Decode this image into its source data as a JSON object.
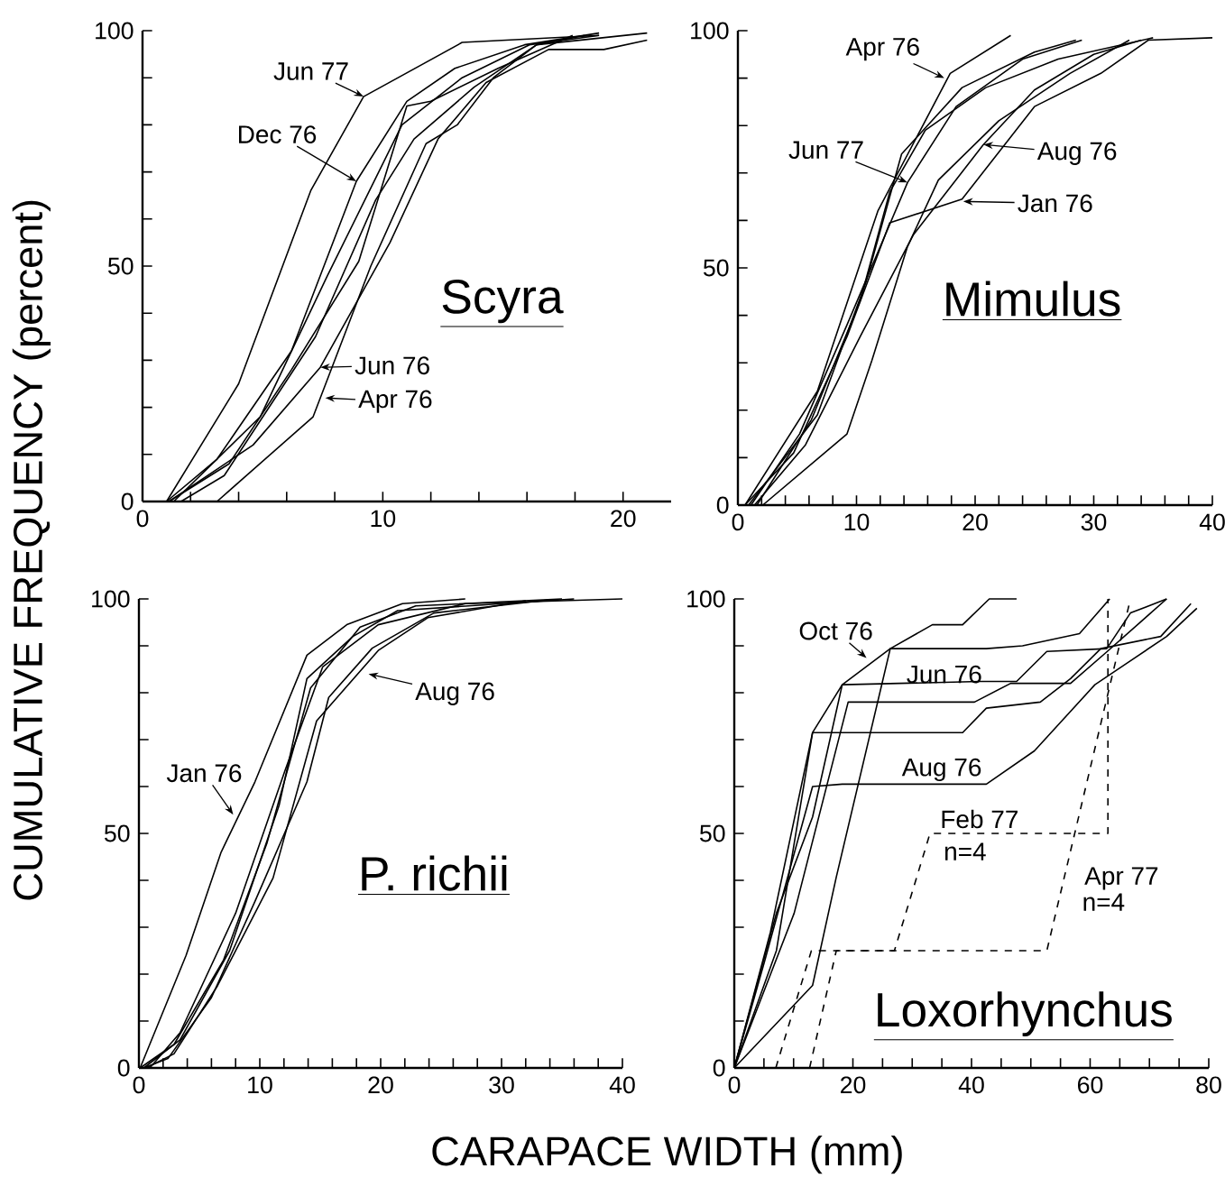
{
  "chart_data": [
    {
      "type": "line",
      "title": "Scyra",
      "ylabel": "CUMULATIVE FREQUENCY (percent)",
      "xlim": [
        0,
        22
      ],
      "ylim": [
        0,
        100
      ],
      "xticks": [
        0,
        {
          "value": 2,
          "label": null
        },
        {
          "value": 4,
          "label": null
        },
        {
          "value": 6,
          "label": null
        },
        {
          "value": 8,
          "label": null
        },
        10,
        {
          "value": 12,
          "label": null
        },
        {
          "value": 14,
          "label": null
        },
        {
          "value": 16,
          "label": null
        },
        {
          "value": 18,
          "label": null
        },
        20
      ],
      "yticks": [
        0,
        {
          "value": 10,
          "label": null
        },
        {
          "value": 20,
          "label": null
        },
        {
          "value": 30,
          "label": null
        },
        {
          "value": 40,
          "label": null
        },
        50,
        {
          "value": 60,
          "label": null
        },
        {
          "value": 70,
          "label": null
        },
        {
          "value": 80,
          "label": null
        },
        {
          "value": 90,
          "label": null
        },
        100
      ],
      "series": [
        {
          "color": "#000000",
          "x": [
            1,
            4,
            7,
            9.2,
            13.3,
            19
          ],
          "values": [
            0,
            25,
            66,
            86,
            97.5,
            99
          ]
        },
        {
          "color": "#000000",
          "x": [
            1,
            3.1,
            6.2,
            8.9,
            11,
            13,
            15.9,
            19
          ],
          "values": [
            0,
            9,
            32,
            68,
            85,
            92,
            97,
            99.5
          ]
        },
        {
          "color": "#000000",
          "x": [
            3.1,
            7.1,
            9.5,
            11.8,
            13.1,
            14.6,
            16.4,
            21
          ],
          "values": [
            0,
            18,
            50,
            76,
            80,
            90,
            97,
            99.5
          ]
        },
        {
          "color": "#000000",
          "x": [
            1.1,
            4.6,
            7.4,
            10.3,
            12.3,
            14.3,
            16.9,
            19.2,
            21
          ],
          "values": [
            0,
            12,
            28.5,
            55,
            77,
            89,
            96,
            96,
            98
          ]
        },
        {
          "color": "#000000",
          "x": [
            1.3,
            4.9,
            7.7,
            10.8,
            13.3,
            16.1,
            19
          ],
          "values": [
            0,
            18,
            48,
            80,
            90,
            97,
            99
          ]
        },
        {
          "color": "#000000",
          "x": [
            1.1,
            3.6,
            6.2,
            9,
            11,
            12,
            14.8,
            17.9
          ],
          "values": [
            0,
            8,
            28,
            51,
            84,
            85,
            92,
            99
          ]
        },
        {
          "color": "#000000",
          "x": [
            1.6,
            3.4,
            5.2,
            7.2,
            9.7,
            11.3,
            13.8,
            16.4,
            18.4
          ],
          "values": [
            0,
            5.5,
            19.5,
            35,
            64,
            77,
            88,
            97,
            99
          ]
        }
      ],
      "annotations": [
        {
          "text": "Jun 77",
          "x": 9.2,
          "y": 86
        },
        {
          "text": "Dec 76",
          "x": 8.9,
          "y": 68
        },
        {
          "text": "Jun 76",
          "x": 7.4,
          "y": 28.5
        },
        {
          "text": "Apr 76",
          "x": 7.6,
          "y": 22
        }
      ]
    },
    {
      "type": "line",
      "title": "Mimulus",
      "xlim": [
        0,
        40
      ],
      "ylim": [
        0,
        100
      ],
      "xticks": [
        0,
        {
          "value": 2,
          "label": null
        },
        {
          "value": 4,
          "label": null
        },
        {
          "value": 6,
          "label": null
        },
        {
          "value": 8,
          "label": null
        },
        10,
        {
          "value": 12,
          "label": null
        },
        {
          "value": 14,
          "label": null
        },
        {
          "value": 16,
          "label": null
        },
        {
          "value": 18,
          "label": null
        },
        20,
        {
          "value": 22,
          "label": null
        },
        {
          "value": 24,
          "label": null
        },
        {
          "value": 26,
          "label": null
        },
        {
          "value": 28,
          "label": null
        },
        30,
        {
          "value": 32,
          "label": null
        },
        {
          "value": 34,
          "label": null
        },
        {
          "value": 36,
          "label": null
        },
        {
          "value": 38,
          "label": null
        },
        40
      ],
      "yticks": [
        0,
        {
          "value": 10,
          "label": null
        },
        {
          "value": 20,
          "label": null
        },
        {
          "value": 30,
          "label": null
        },
        {
          "value": 40,
          "label": null
        },
        50,
        {
          "value": 60,
          "label": null
        },
        {
          "value": 70,
          "label": null
        },
        {
          "value": 80,
          "label": null
        },
        {
          "value": 90,
          "label": null
        },
        100
      ],
      "series": [
        {
          "color": "#000000",
          "x": [
            0.6,
            6.7,
            11.8,
            17.9,
            23
          ],
          "values": [
            0,
            24,
            62,
            91,
            99
          ]
        },
        {
          "color": "#000000",
          "x": [
            1.1,
            5.2,
            9.2,
            14.3,
            18.4,
            24,
            29
          ],
          "values": [
            0,
            15,
            38,
            68,
            84,
            94,
            98
          ]
        },
        {
          "color": "#000000",
          "x": [
            1.4,
            5.7,
            10.3,
            14.8,
            20.7,
            25,
            30,
            34
          ],
          "values": [
            0,
            12.7,
            35.5,
            57,
            76,
            87.5,
            95,
            98
          ]
        },
        {
          "color": "#000000",
          "x": [
            0.6,
            4.7,
            9.2,
            12.8,
            18.9,
            25,
            30.6,
            34.6,
            40
          ],
          "values": [
            0,
            11,
            35.5,
            59.5,
            64.5,
            84,
            91,
            98,
            98.5
          ]
        },
        {
          "color": "#000000",
          "x": [
            2.1,
            9.2,
            11.3,
            14.3,
            16.9,
            22,
            28,
            33
          ],
          "values": [
            0,
            15,
            30.5,
            54.5,
            68.5,
            81,
            91,
            98
          ]
        },
        {
          "color": "#000000",
          "x": [
            0.9,
            6.7,
            10.8,
            13.8,
            18.9,
            25,
            28.5
          ],
          "values": [
            0,
            19,
            47,
            74,
            88,
            95.5,
            98
          ]
        },
        {
          "color": "#000000",
          "x": [
            1.6,
            6.2,
            10.3,
            12.8,
            15.8,
            20.9,
            27,
            35
          ],
          "values": [
            0,
            18,
            43,
            66,
            79,
            88,
            94,
            98.5
          ]
        }
      ],
      "annotations": [
        {
          "text": "Apr 76",
          "x": 17.4,
          "y": 90
        },
        {
          "text": "Jun 77",
          "x": 14.3,
          "y": 68
        },
        {
          "text": "Aug 76",
          "x": 20.7,
          "y": 76
        },
        {
          "text": "Jan 76",
          "x": 19,
          "y": 64
        }
      ]
    },
    {
      "type": "line",
      "title": "P. richii",
      "xlabel": "CARAPACE WIDTH (mm)",
      "xlim": [
        0,
        40
      ],
      "ylim": [
        0,
        100
      ],
      "xticks": [
        0,
        {
          "value": 2,
          "label": null
        },
        {
          "value": 4,
          "label": null
        },
        {
          "value": 6,
          "label": null
        },
        {
          "value": 8,
          "label": null
        },
        10,
        {
          "value": 12,
          "label": null
        },
        {
          "value": 14,
          "label": null
        },
        {
          "value": 16,
          "label": null
        },
        {
          "value": 18,
          "label": null
        },
        20,
        {
          "value": 22,
          "label": null
        },
        {
          "value": 24,
          "label": null
        },
        {
          "value": 26,
          "label": null
        },
        {
          "value": 28,
          "label": null
        },
        30,
        {
          "value": 32,
          "label": null
        },
        {
          "value": 34,
          "label": null
        },
        {
          "value": 36,
          "label": null
        },
        {
          "value": 38,
          "label": null
        },
        40
      ],
      "yticks": [
        0,
        {
          "value": 10,
          "label": null
        },
        {
          "value": 20,
          "label": null
        },
        {
          "value": 30,
          "label": null
        },
        {
          "value": 40,
          "label": null
        },
        50,
        {
          "value": 60,
          "label": null
        },
        {
          "value": 70,
          "label": null
        },
        {
          "value": 80,
          "label": null
        },
        {
          "value": 90,
          "label": null
        },
        100
      ],
      "series": [
        {
          "color": "#000000",
          "x": [
            0.1,
            3.9,
            6.8,
            9.6,
            13.9,
            17.2,
            21.8,
            27
          ],
          "values": [
            0,
            24,
            46,
            61,
            88,
            94.5,
            99,
            100
          ]
        },
        {
          "color": "#000000",
          "x": [
            0.6,
            2.9,
            6.5,
            11.1,
            14.7,
            19.8,
            23.9,
            32
          ],
          "values": [
            0,
            3,
            17.5,
            40.5,
            74,
            89,
            96,
            99.6
          ]
        },
        {
          "color": "#000000",
          "x": [
            0.4,
            2.4,
            6,
            9.6,
            13.9,
            15.7,
            19.3,
            24.4,
            34
          ],
          "values": [
            0,
            2,
            15,
            35.5,
            61,
            79,
            89.5,
            97,
            99.8
          ]
        },
        {
          "color": "#000000",
          "x": [
            0.4,
            3.4,
            7.5,
            11.6,
            13.9,
            17.7,
            21.4,
            36
          ],
          "values": [
            0,
            6,
            25,
            56,
            83,
            92,
            97.5,
            100
          ]
        },
        {
          "color": "#000000",
          "x": [
            0.1,
            2.9,
            7,
            10.6,
            14.2,
            18.3,
            22.9,
            35
          ],
          "values": [
            0,
            5,
            23,
            48,
            81,
            94,
            98.5,
            100
          ]
        },
        {
          "color": "#000000",
          "x": [
            0.9,
            3.4,
            8,
            12.1,
            15.2,
            19.8,
            27,
            40
          ],
          "values": [
            0,
            7.5,
            33,
            63.5,
            85.5,
            94.5,
            99,
            100
          ]
        }
      ],
      "annotations": [
        {
          "text": "Jan 76",
          "x": 7.8,
          "y": 54
        },
        {
          "text": "Aug 76",
          "x": 19,
          "y": 84
        }
      ]
    },
    {
      "type": "line",
      "title": "Loxorhynchus",
      "xlim": [
        0,
        80
      ],
      "ylim": [
        0,
        100
      ],
      "xticks": [
        0,
        {
          "value": 5,
          "label": null
        },
        {
          "value": 10,
          "label": null
        },
        {
          "value": 15,
          "label": null
        },
        20,
        {
          "value": 25,
          "label": null
        },
        {
          "value": 30,
          "label": null
        },
        {
          "value": 35,
          "label": null
        },
        40,
        {
          "value": 45,
          "label": null
        },
        {
          "value": 50,
          "label": null
        },
        {
          "value": 55,
          "label": null
        },
        60,
        {
          "value": 65,
          "label": null
        },
        {
          "value": 70,
          "label": null
        },
        {
          "value": 75,
          "label": null
        },
        80
      ],
      "yticks": [
        0,
        {
          "value": 10,
          "label": null
        },
        {
          "value": 20,
          "label": null
        },
        {
          "value": 30,
          "label": null
        },
        {
          "value": 40,
          "label": null
        },
        50,
        {
          "value": 60,
          "label": null
        },
        {
          "value": 70,
          "label": null
        },
        {
          "value": 80,
          "label": null
        },
        {
          "value": 90,
          "label": null
        },
        100
      ],
      "series": [
        {
          "color": "#000000",
          "x": [
            0,
            7.1,
            13.2,
            18.2,
            26.3,
            33.4,
            38.5,
            43,
            47.6
          ],
          "values": [
            0,
            33,
            53.5,
            81.7,
            89.4,
            94.5,
            94.5,
            100,
            100
          ]
        },
        {
          "color": "#000000",
          "x": [
            0,
            6.1,
            13.2,
            18.2,
            41.5,
            47.6,
            52.7,
            62.8,
            66.8,
            72.9
          ],
          "values": [
            0,
            29,
            71.5,
            81.7,
            82.4,
            82.4,
            88.8,
            89.4,
            97,
            100
          ]
        },
        {
          "color": "#000000",
          "x": [
            0,
            5.1,
            13.2,
            18.2,
            42.5,
            50.6,
            60.8,
            66.8,
            72.9,
            78
          ],
          "values": [
            0,
            22.7,
            60,
            60.5,
            60.5,
            67.6,
            81.7,
            86.8,
            92,
            98
          ]
        },
        {
          "color": "#000000",
          "x": [
            0,
            7.1,
            13.2,
            38.5,
            42.5,
            51.6,
            56.7,
            61.8,
            71.9,
            77
          ],
          "values": [
            0,
            25,
            71.5,
            71.5,
            76.7,
            78,
            83,
            89.4,
            92,
            99
          ]
        },
        {
          "color": "#000000",
          "x": [
            0,
            13.2,
            17.2,
            26.3,
            42.5,
            48.6,
            58.2,
            63.3
          ],
          "values": [
            0,
            17.6,
            40.7,
            89.4,
            89.4,
            90,
            92.6,
            100
          ]
        },
        {
          "color": "#000000",
          "x": [
            0,
            10.1,
            19.2,
            40.5,
            46.6,
            56.7,
            62.8,
            72.9
          ],
          "values": [
            0,
            33,
            78,
            78,
            82,
            82,
            88.7,
            100
          ]
        },
        {
          "color": "#000000",
          "line_style": "dashed",
          "x": [
            7,
            13,
            27,
            33,
            63,
            63
          ],
          "values": [
            0,
            25,
            25,
            50,
            50,
            100
          ]
        },
        {
          "color": "#000000",
          "line_style": "dashed",
          "x": [
            12.7,
            17.2,
            52.7,
            66.8
          ],
          "values": [
            0,
            25,
            25,
            100
          ]
        }
      ],
      "annotations": [
        {
          "text": "Oct 76",
          "x": 22.3,
          "y": 87.4
        },
        {
          "text": "Jun 76",
          "x": 41.5,
          "y": 82.4
        },
        {
          "text": "Aug 76",
          "x": 35,
          "y": 60.5
        },
        {
          "text": "Feb 77",
          "x": 45,
          "y": 50
        },
        {
          "text": "n=4",
          "x": 45,
          "y": 50
        },
        {
          "text": "Apr 77",
          "x": 57.4,
          "y": 50
        },
        {
          "text": "n=4",
          "x": 57.4,
          "y": 50
        }
      ]
    }
  ]
}
